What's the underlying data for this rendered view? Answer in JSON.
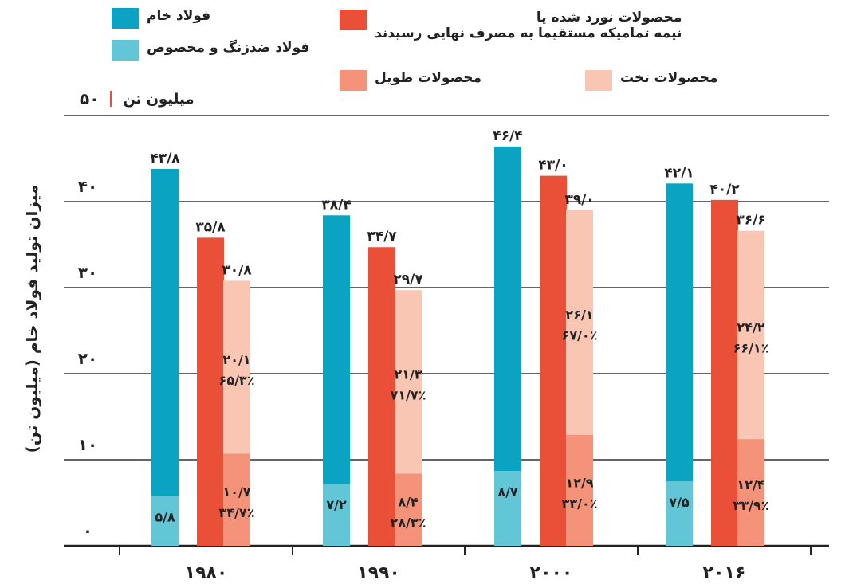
{
  "chart_data": {
    "type": "bar",
    "ylabel": "میزان تولید فولاد خام (میلیون تن)",
    "unit_label": "میلیون تن",
    "ylim": [
      0,
      50
    ],
    "yticks": [
      {
        "value": 0,
        "label": "۰"
      },
      {
        "value": 10,
        "label": "۱۰"
      },
      {
        "value": 20,
        "label": "۲۰"
      },
      {
        "value": 30,
        "label": "۳۰"
      },
      {
        "value": 40,
        "label": "۴۰"
      },
      {
        "value": 50,
        "label": "۵۰"
      }
    ],
    "grid": true,
    "legend": [
      {
        "key": "crude",
        "label": "فولاد خام",
        "color": "#0aa3c2"
      },
      {
        "key": "stainless",
        "label": "فولاد ضدزنگ و مخصوص",
        "color": "#62c6d6"
      },
      {
        "key": "rolled",
        "label": "محصولات نورد شده یا\nنیمه تمامیکه مستقیما به مصرف نهایی رسیدند",
        "color": "#ea4f38"
      },
      {
        "key": "long",
        "label": "محصولات طویل",
        "color": "#f4927a"
      },
      {
        "key": "flat",
        "label": "محصولات تخت",
        "color": "#f9c6b4"
      }
    ],
    "categories": [
      {
        "label": "۱۹۸۰",
        "crude": {
          "value": 43.8,
          "label": "۴۳/۸"
        },
        "stainless": {
          "value": 5.8,
          "label": "۵/۸"
        },
        "rolled": {
          "value": 35.8,
          "label": "۳۵/۸"
        },
        "long": {
          "value": 10.7,
          "label": "۱۰/۷",
          "pct": "۳۴/۷٪"
        },
        "flat": {
          "value": 20.1,
          "label": "۲۰/۱",
          "pct": "۶۵/۳٪"
        },
        "long_flat_total": {
          "value": 30.8,
          "label": "۳۰/۸"
        }
      },
      {
        "label": "۱۹۹۰",
        "crude": {
          "value": 38.4,
          "label": "۳۸/۴"
        },
        "stainless": {
          "value": 7.2,
          "label": "۷/۲"
        },
        "rolled": {
          "value": 34.7,
          "label": "۳۴/۷"
        },
        "long": {
          "value": 8.4,
          "label": "۸/۴",
          "pct": "۲۸/۳٪"
        },
        "flat": {
          "value": 21.3,
          "label": "۲۱/۳",
          "pct": "۷۱/۷٪"
        },
        "long_flat_total": {
          "value": 29.7,
          "label": "۲۹/۷"
        }
      },
      {
        "label": "۲۰۰۰",
        "crude": {
          "value": 46.4,
          "label": "۴۶/۴"
        },
        "stainless": {
          "value": 8.7,
          "label": "۸/۷"
        },
        "rolled": {
          "value": 43.0,
          "label": "۴۳/۰"
        },
        "long": {
          "value": 12.9,
          "label": "۱۲/۹",
          "pct": "۳۳/۰٪"
        },
        "flat": {
          "value": 26.1,
          "label": "۲۶/۱",
          "pct": "۶۷/۰٪"
        },
        "long_flat_total": {
          "value": 39.0,
          "label": "۳۹/۰"
        }
      },
      {
        "label": "۲۰۱۶",
        "crude": {
          "value": 42.1,
          "label": "۴۲/۱"
        },
        "stainless": {
          "value": 7.5,
          "label": "۷/۵"
        },
        "rolled": {
          "value": 40.2,
          "label": "۴۰/۲"
        },
        "long": {
          "value": 12.4,
          "label": "۱۲/۴",
          "pct": "۳۳/۹٪"
        },
        "flat": {
          "value": 24.2,
          "label": "۲۴/۲",
          "pct": "۶۶/۱٪"
        },
        "long_flat_total": {
          "value": 36.6,
          "label": "۳۶/۶"
        }
      }
    ]
  }
}
